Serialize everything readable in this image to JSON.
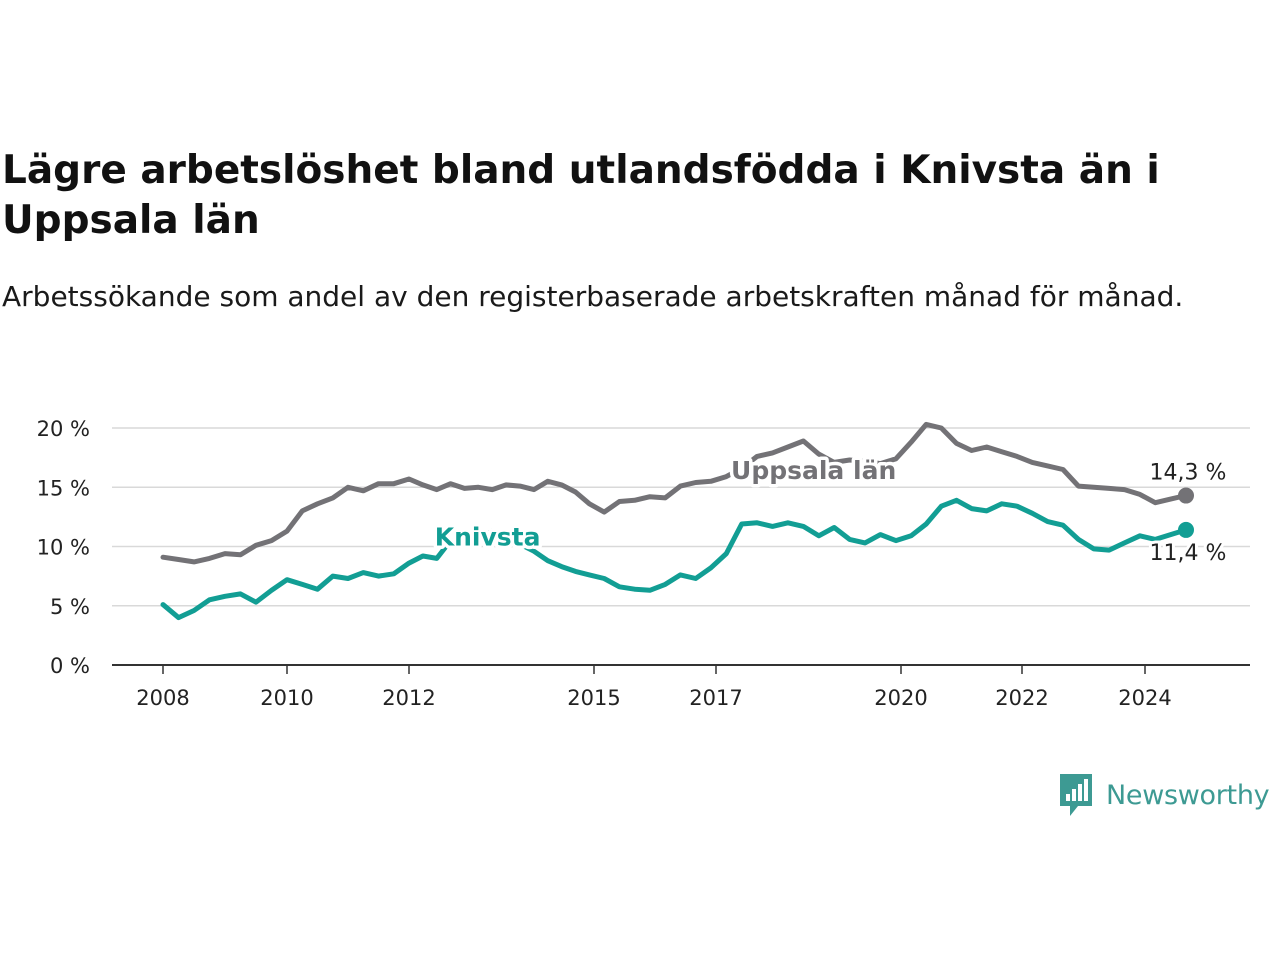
{
  "title": "Lägre arbetslöshet bland utlandsfödda i Knivsta än i Uppsala län",
  "subtitle": "Arbetssökande som andel av den registerbaserade arbetskraften månad för månad.",
  "logo": {
    "text": "Newsworthy",
    "icon": "newsworthy-chart-icon",
    "color": "#3d9a93"
  },
  "chart_data": {
    "type": "line",
    "title": "Lägre arbetslöshet bland utlandsfödda i Knivsta än i Uppsala län",
    "subtitle": "Arbetssökande som andel av den registerbaserade arbetskraften månad för månad.",
    "xlabel": "",
    "ylabel": "",
    "xlim": [
      "2008-01",
      "2025-04"
    ],
    "ylim": [
      0,
      20
    ],
    "grid": true,
    "legend": "inline labels",
    "x_ticks": [
      {
        "date": "2008-01",
        "label": "2008"
      },
      {
        "date": "2010-01",
        "label": "2010"
      },
      {
        "date": "2012-01",
        "label": "2012"
      },
      {
        "date": "2015-05",
        "label": "2015"
      },
      {
        "date": "2017-05",
        "label": "2017"
      },
      {
        "date": "2020-05",
        "label": "2020"
      },
      {
        "date": "2022-05",
        "label": "2022"
      },
      {
        "date": "2024-05",
        "label": "2024"
      }
    ],
    "y_ticks": [
      {
        "value": 0,
        "label": "0 %"
      },
      {
        "value": 5,
        "label": "5 %"
      },
      {
        "value": 10,
        "label": "10 %"
      },
      {
        "value": 15,
        "label": "15 %"
      },
      {
        "value": 20,
        "label": "20 %"
      }
    ],
    "series": [
      {
        "name": "Uppsala län",
        "color": "#737276",
        "end_label": "14,3 %",
        "label_anchor": "2018-12",
        "label_value": 15.7,
        "points": [
          [
            "2008-01",
            9.1
          ],
          [
            "2008-04",
            8.9
          ],
          [
            "2008-07",
            8.7
          ],
          [
            "2008-10",
            9.0
          ],
          [
            "2009-01",
            9.4
          ],
          [
            "2009-04",
            9.3
          ],
          [
            "2009-07",
            10.1
          ],
          [
            "2009-10",
            10.5
          ],
          [
            "2010-01",
            11.3
          ],
          [
            "2010-04",
            13.0
          ],
          [
            "2010-07",
            13.6
          ],
          [
            "2010-10",
            14.1
          ],
          [
            "2011-01",
            15.0
          ],
          [
            "2011-04",
            14.7
          ],
          [
            "2011-07",
            15.3
          ],
          [
            "2011-10",
            15.3
          ],
          [
            "2012-01",
            15.7
          ],
          [
            "2012-04",
            15.2
          ],
          [
            "2012-07",
            14.8
          ],
          [
            "2012-10",
            15.3
          ],
          [
            "2013-01",
            14.9
          ],
          [
            "2013-04",
            15.0
          ],
          [
            "2013-07",
            14.8
          ],
          [
            "2013-10",
            15.2
          ],
          [
            "2014-01",
            15.1
          ],
          [
            "2014-04",
            14.8
          ],
          [
            "2014-07",
            15.5
          ],
          [
            "2014-10",
            15.2
          ],
          [
            "2015-01",
            14.6
          ],
          [
            "2015-04",
            13.6
          ],
          [
            "2015-07",
            12.9
          ],
          [
            "2015-10",
            13.8
          ],
          [
            "2016-01",
            13.9
          ],
          [
            "2016-04",
            14.2
          ],
          [
            "2016-07",
            14.1
          ],
          [
            "2016-10",
            15.1
          ],
          [
            "2017-01",
            15.4
          ],
          [
            "2017-04",
            15.5
          ],
          [
            "2017-07",
            15.9
          ],
          [
            "2017-10",
            16.6
          ],
          [
            "2018-01",
            17.6
          ],
          [
            "2018-04",
            17.9
          ],
          [
            "2018-07",
            18.4
          ],
          [
            "2018-10",
            18.9
          ],
          [
            "2019-01",
            17.8
          ],
          [
            "2019-04",
            17.1
          ],
          [
            "2019-07",
            17.3
          ],
          [
            "2019-10",
            17.2
          ],
          [
            "2020-01",
            17.0
          ],
          [
            "2020-04",
            17.4
          ],
          [
            "2020-07",
            18.8
          ],
          [
            "2020-10",
            20.3
          ],
          [
            "2021-01",
            20.0
          ],
          [
            "2021-04",
            18.7
          ],
          [
            "2021-07",
            18.1
          ],
          [
            "2021-10",
            18.4
          ],
          [
            "2022-01",
            18.0
          ],
          [
            "2022-04",
            17.6
          ],
          [
            "2022-07",
            17.1
          ],
          [
            "2022-10",
            16.8
          ],
          [
            "2023-01",
            16.5
          ],
          [
            "2023-04",
            15.1
          ],
          [
            "2023-07",
            15.0
          ],
          [
            "2023-10",
            14.9
          ],
          [
            "2024-01",
            14.8
          ],
          [
            "2024-04",
            14.4
          ],
          [
            "2024-07",
            13.7
          ],
          [
            "2024-10",
            14.0
          ],
          [
            "2025-01",
            14.3
          ]
        ]
      },
      {
        "name": "Knivsta",
        "color": "#129e94",
        "end_label": "11,4 %",
        "label_anchor": "2013-06",
        "label_value": 10.1,
        "points": [
          [
            "2008-01",
            5.1
          ],
          [
            "2008-04",
            4.0
          ],
          [
            "2008-07",
            4.6
          ],
          [
            "2008-10",
            5.5
          ],
          [
            "2009-01",
            5.8
          ],
          [
            "2009-04",
            6.0
          ],
          [
            "2009-07",
            5.3
          ],
          [
            "2009-10",
            6.3
          ],
          [
            "2010-01",
            7.2
          ],
          [
            "2010-04",
            6.8
          ],
          [
            "2010-07",
            6.4
          ],
          [
            "2010-10",
            7.5
          ],
          [
            "2011-01",
            7.3
          ],
          [
            "2011-04",
            7.8
          ],
          [
            "2011-07",
            7.5
          ],
          [
            "2011-10",
            7.7
          ],
          [
            "2012-01",
            8.6
          ],
          [
            "2012-04",
            9.2
          ],
          [
            "2012-07",
            9.0
          ],
          [
            "2012-10",
            10.5
          ],
          [
            "2013-01",
            10.1
          ],
          [
            "2013-04",
            10.5
          ],
          [
            "2013-07",
            11.3
          ],
          [
            "2013-10",
            10.8
          ],
          [
            "2014-01",
            10.2
          ],
          [
            "2014-04",
            9.6
          ],
          [
            "2014-07",
            8.8
          ],
          [
            "2014-10",
            8.3
          ],
          [
            "2015-01",
            7.9
          ],
          [
            "2015-04",
            7.6
          ],
          [
            "2015-07",
            7.3
          ],
          [
            "2015-10",
            6.6
          ],
          [
            "2016-01",
            6.4
          ],
          [
            "2016-04",
            6.3
          ],
          [
            "2016-07",
            6.8
          ],
          [
            "2016-10",
            7.6
          ],
          [
            "2017-01",
            7.3
          ],
          [
            "2017-04",
            8.2
          ],
          [
            "2017-07",
            9.4
          ],
          [
            "2017-10",
            11.9
          ],
          [
            "2018-01",
            12.0
          ],
          [
            "2018-04",
            11.7
          ],
          [
            "2018-07",
            12.0
          ],
          [
            "2018-10",
            11.7
          ],
          [
            "2019-01",
            10.9
          ],
          [
            "2019-04",
            11.6
          ],
          [
            "2019-07",
            10.6
          ],
          [
            "2019-10",
            10.3
          ],
          [
            "2020-01",
            11.0
          ],
          [
            "2020-04",
            10.5
          ],
          [
            "2020-07",
            10.9
          ],
          [
            "2020-10",
            11.9
          ],
          [
            "2021-01",
            13.4
          ],
          [
            "2021-04",
            13.9
          ],
          [
            "2021-07",
            13.2
          ],
          [
            "2021-10",
            13.0
          ],
          [
            "2022-01",
            13.6
          ],
          [
            "2022-04",
            13.4
          ],
          [
            "2022-07",
            12.8
          ],
          [
            "2022-10",
            12.1
          ],
          [
            "2023-01",
            11.8
          ],
          [
            "2023-04",
            10.6
          ],
          [
            "2023-07",
            9.8
          ],
          [
            "2023-10",
            9.7
          ],
          [
            "2024-01",
            10.3
          ],
          [
            "2024-04",
            10.9
          ],
          [
            "2024-07",
            10.6
          ],
          [
            "2024-10",
            11.0
          ],
          [
            "2025-01",
            11.4
          ]
        ]
      }
    ]
  }
}
